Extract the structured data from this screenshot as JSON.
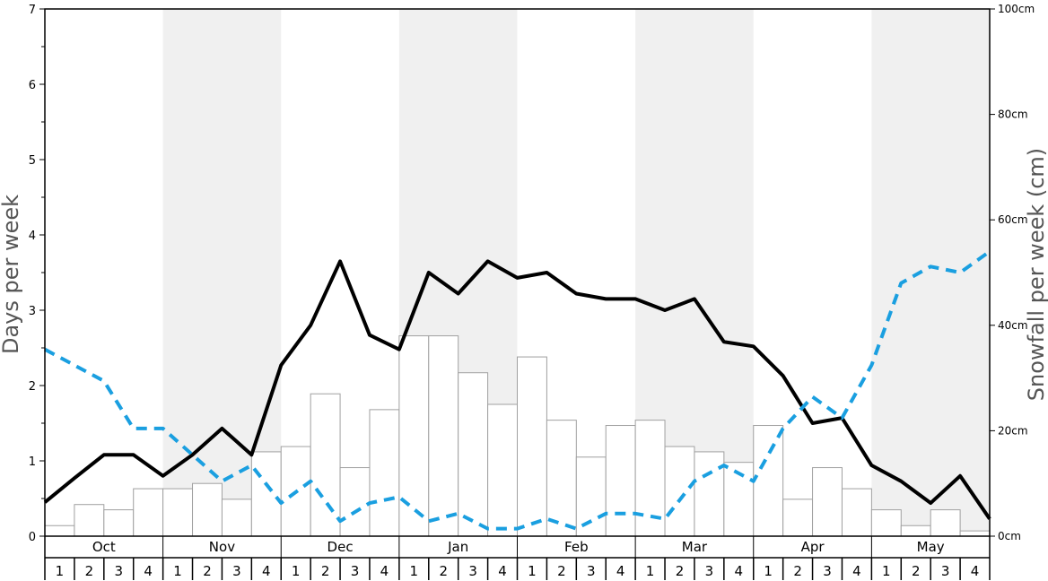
{
  "chart_data": {
    "type": "bar",
    "left_axis": {
      "title": "Days per week",
      "ylim": [
        0,
        7
      ],
      "ticks": [
        "0",
        "1",
        "2",
        "3",
        "4",
        "5",
        "6",
        "7"
      ]
    },
    "right_axis": {
      "title": "Snowfall per week (cm)",
      "ylim": [
        0,
        100
      ],
      "ticks": [
        "0cm",
        "20cm",
        "40cm",
        "60cm",
        "80cm",
        "100cm"
      ]
    },
    "months": [
      "Oct",
      "Nov",
      "Dec",
      "Jan",
      "Feb",
      "Mar",
      "Apr",
      "May"
    ],
    "week_labels": [
      "1",
      "2",
      "3",
      "4"
    ],
    "shaded_months": [
      "Nov",
      "Jan",
      "Mar",
      "May"
    ],
    "grid": false,
    "colors": {
      "bars_fill": "#ffffff",
      "bars_stroke": "#a0a0a0",
      "solid_line": "#000000",
      "dashed_line": "#1a9fe0",
      "shade": "#f0f0f0"
    },
    "series": [
      {
        "kind": "bar",
        "axis": "right",
        "values": [
          2,
          6,
          5,
          9,
          9,
          10,
          7,
          16,
          17,
          27,
          13,
          24,
          38,
          38,
          31,
          25,
          34,
          22,
          15,
          21,
          22,
          17,
          16,
          14,
          21,
          7,
          13,
          9,
          5,
          2,
          5,
          1
        ]
      },
      {
        "kind": "line",
        "style": "solid",
        "axis": "left",
        "values": [
          0.45,
          0.77,
          1.08,
          1.08,
          0.8,
          1.08,
          1.43,
          1.08,
          2.27,
          2.8,
          3.65,
          2.67,
          2.48,
          3.5,
          3.22,
          3.65,
          3.43,
          3.5,
          3.22,
          3.15,
          3.15,
          3.0,
          3.15,
          2.58,
          2.52,
          2.13,
          1.5,
          1.57,
          0.94,
          0.73,
          0.44,
          0.8,
          0.23
        ]
      },
      {
        "kind": "line",
        "style": "dashed",
        "axis": "left",
        "values": [
          2.48,
          2.27,
          2.06,
          1.43,
          1.43,
          1.08,
          0.73,
          0.94,
          0.44,
          0.73,
          0.2,
          0.44,
          0.52,
          0.2,
          0.3,
          0.1,
          0.1,
          0.23,
          0.1,
          0.3,
          0.3,
          0.23,
          0.73,
          0.94,
          0.73,
          1.43,
          1.85,
          1.57,
          2.27,
          3.36,
          3.58,
          3.5,
          3.78
        ]
      }
    ]
  }
}
